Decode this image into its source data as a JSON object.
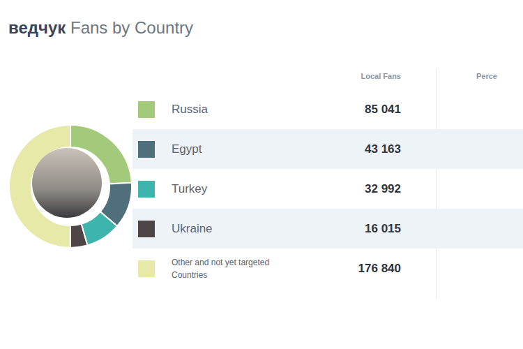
{
  "chart_data": {
    "type": "pie",
    "title": "ведчук Fans by Country",
    "table_headers": [
      "Local Fans",
      "Perce"
    ],
    "categories": [
      "Russia",
      "Egypt",
      "Turkey",
      "Ukraine",
      "Other and not yet targeted Countries"
    ],
    "values": [
      85041,
      43163,
      32992,
      16015,
      176840
    ],
    "value_labels": [
      "85 041",
      "43 163",
      "32 992",
      "16 015",
      "176 840"
    ],
    "colors": [
      "#a3c97a",
      "#4f6f7c",
      "#3db5ad",
      "#4e4547",
      "#e6e9a8"
    ],
    "data_labels": true
  }
}
